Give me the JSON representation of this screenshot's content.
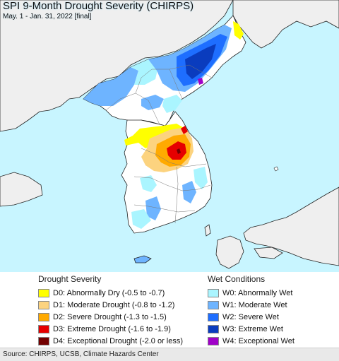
{
  "map": {
    "title": "SPI 9-Month Drought Severity (CHIRPS)",
    "subtitle": "May. 1 - Jan. 31, 2022 [final]",
    "colors": {
      "ocean": "#c8f5ff",
      "land_outside": "#efefef",
      "border": "#222222",
      "normal": "#ffffff"
    }
  },
  "legend_drought": {
    "title": "Drought Severity",
    "items": [
      {
        "label": "D0: Abnormally Dry (-0.5 to -0.7)",
        "color": "#ffff00"
      },
      {
        "label": "D1: Moderate Drought (-0.8 to -1.2)",
        "color": "#fcd37f"
      },
      {
        "label": "D2: Severe Drought (-1.3 to -1.5)",
        "color": "#ffaa00"
      },
      {
        "label": "D3: Extreme Drought (-1.6 to -1.9)",
        "color": "#e60000"
      },
      {
        "label": "D4: Exceptional Drought (-2.0 or less)",
        "color": "#730000"
      }
    ]
  },
  "legend_wet": {
    "title": "Wet Conditions",
    "items": [
      {
        "label": "W0: Abnormally Wet",
        "color": "#aaf5ff"
      },
      {
        "label": "W1: Moderate Wet",
        "color": "#6eb4ff"
      },
      {
        "label": "W2: Severe Wet",
        "color": "#1e6eff"
      },
      {
        "label": "W3: Extreme Wet",
        "color": "#0a3cbe"
      },
      {
        "label": "W4: Exceptional Wet",
        "color": "#a000c8"
      }
    ]
  },
  "footer": {
    "source": "Source: CHIRPS, UCSB, Climate Hazards Center"
  }
}
